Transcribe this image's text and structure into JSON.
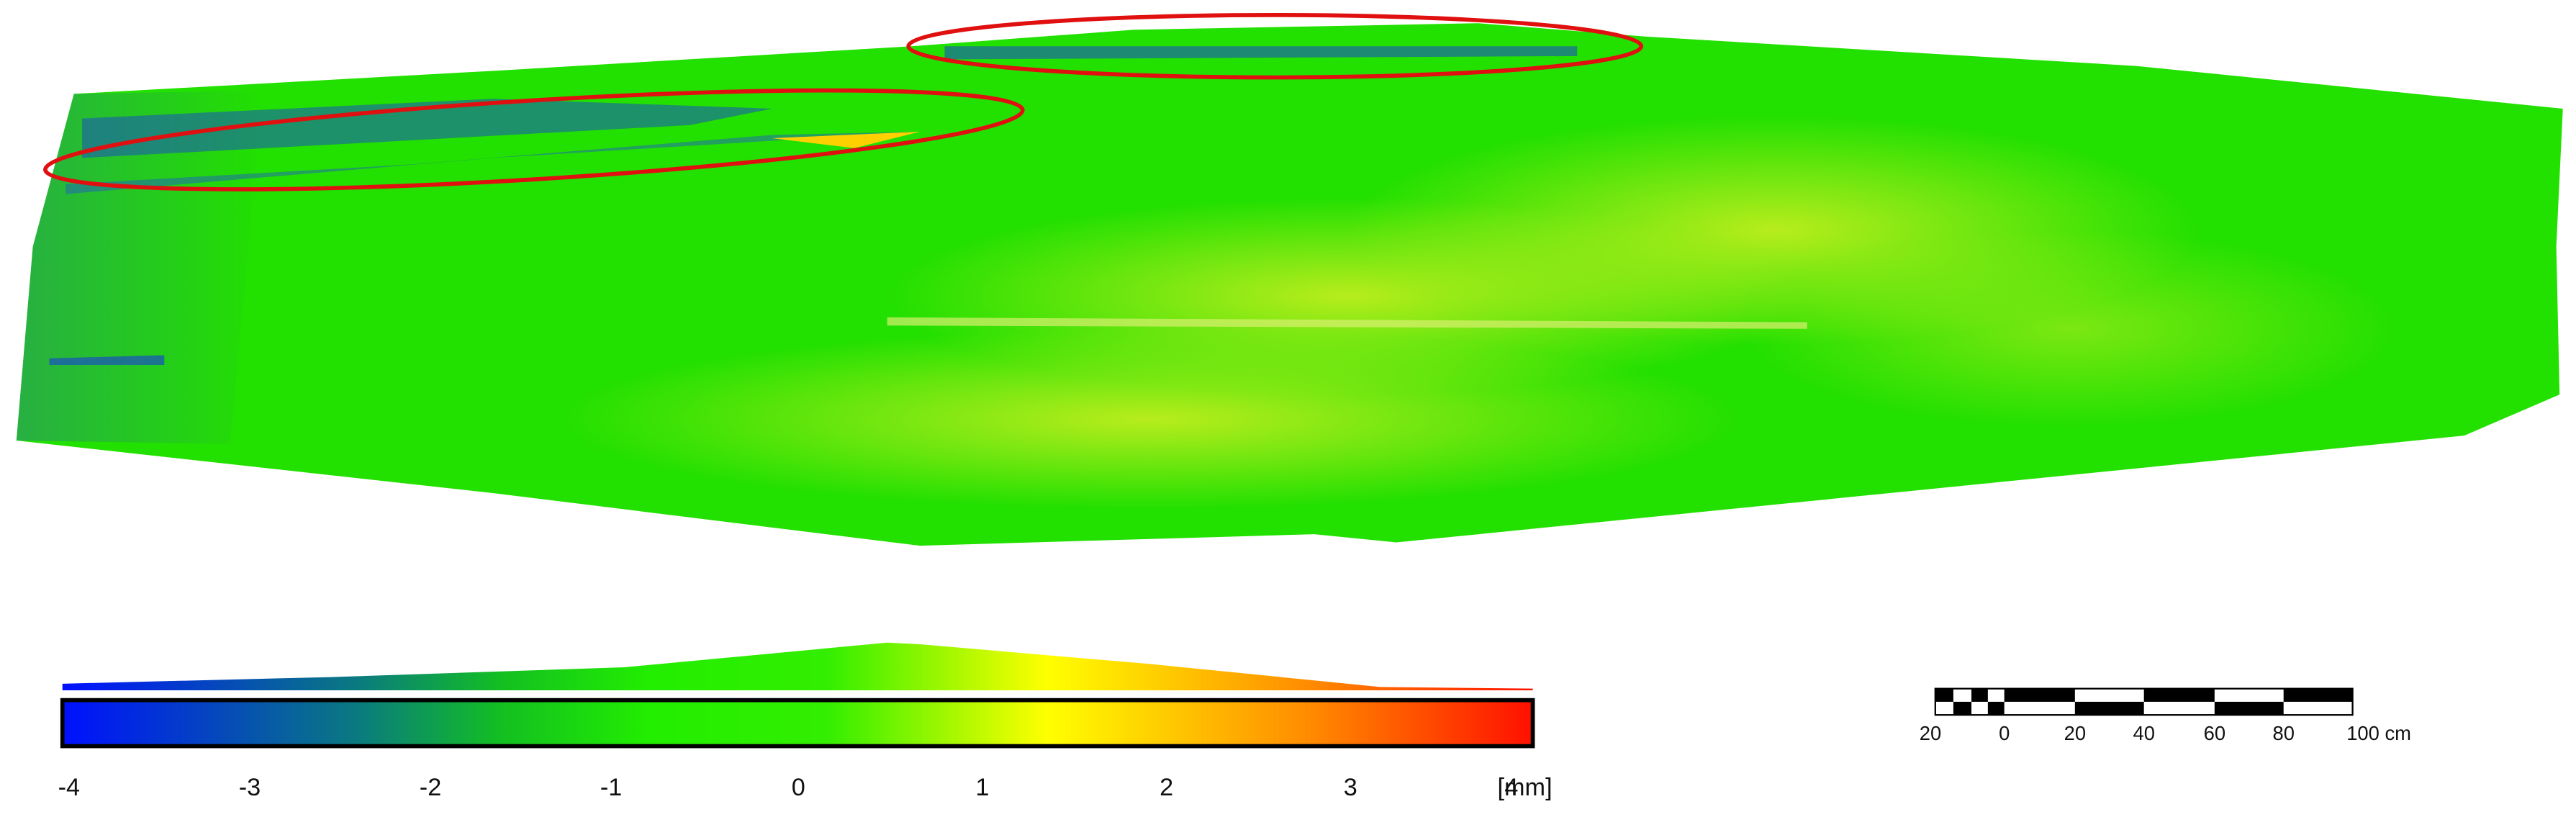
{
  "colorbar": {
    "ticks": [
      "-4",
      "-3",
      "-2",
      "-1",
      "0",
      "1",
      "2",
      "3",
      "4"
    ],
    "unit": "[mm]"
  },
  "scale_bar": {
    "labels": [
      "20",
      "0",
      "20",
      "40",
      "60",
      "80",
      "100 cm"
    ]
  }
}
